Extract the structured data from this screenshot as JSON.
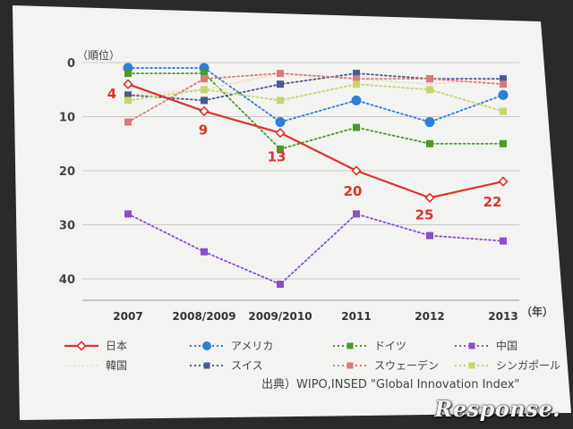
{
  "chart_data": {
    "type": "line",
    "ylabel": "（順位）",
    "x_unit": "（年）",
    "categories": [
      "2007",
      "2008/2009",
      "2009/2010",
      "2011",
      "2012",
      "2013"
    ],
    "ylim": [
      0,
      40
    ],
    "y_inverted": true,
    "yticks": [
      0,
      10,
      20,
      30,
      40
    ],
    "grid": true,
    "legend_position": "bottom",
    "source": "出典）WIPO,INSED \"Global Innovation Index\"",
    "series": [
      {
        "name": "日本",
        "values": [
          4,
          9,
          13,
          20,
          25,
          22
        ],
        "color": "#d9342b",
        "style": "solid",
        "marker": "diamond",
        "labels": [
          "4",
          "9",
          "13",
          "20",
          "25",
          "22"
        ]
      },
      {
        "name": "アメリカ",
        "values": [
          1,
          1,
          11,
          7,
          11,
          6
        ],
        "color": "#2e7fd6",
        "style": "dotted",
        "marker": "circle"
      },
      {
        "name": "ドイツ",
        "values": [
          2,
          2,
          16,
          12,
          15,
          15
        ],
        "color": "#4a9a2a",
        "style": "dotted",
        "marker": "square"
      },
      {
        "name": "中国",
        "values": [
          28,
          35,
          41,
          28,
          32,
          33
        ],
        "color": "#8a4fc9",
        "style": "dotted",
        "marker": "square"
      },
      {
        "name": "韓国",
        "values": [
          6,
          5,
          2,
          3,
          4,
          3
        ],
        "color": "#f2dcc4",
        "style": "dotted",
        "marker": "none"
      },
      {
        "name": "スイス",
        "values": [
          6,
          7,
          4,
          2,
          3,
          3
        ],
        "color": "#4a5a90",
        "style": "dotted",
        "marker": "square"
      },
      {
        "name": "スウェーデン",
        "values": [
          11,
          3,
          2,
          3,
          3,
          4
        ],
        "color": "#d97a7a",
        "style": "dotted",
        "marker": "square"
      },
      {
        "name": "シンガポール",
        "values": [
          7,
          5,
          7,
          4,
          5,
          9
        ],
        "color": "#c7d66a",
        "style": "dotted",
        "marker": "square"
      }
    ]
  },
  "watermark": "Response."
}
